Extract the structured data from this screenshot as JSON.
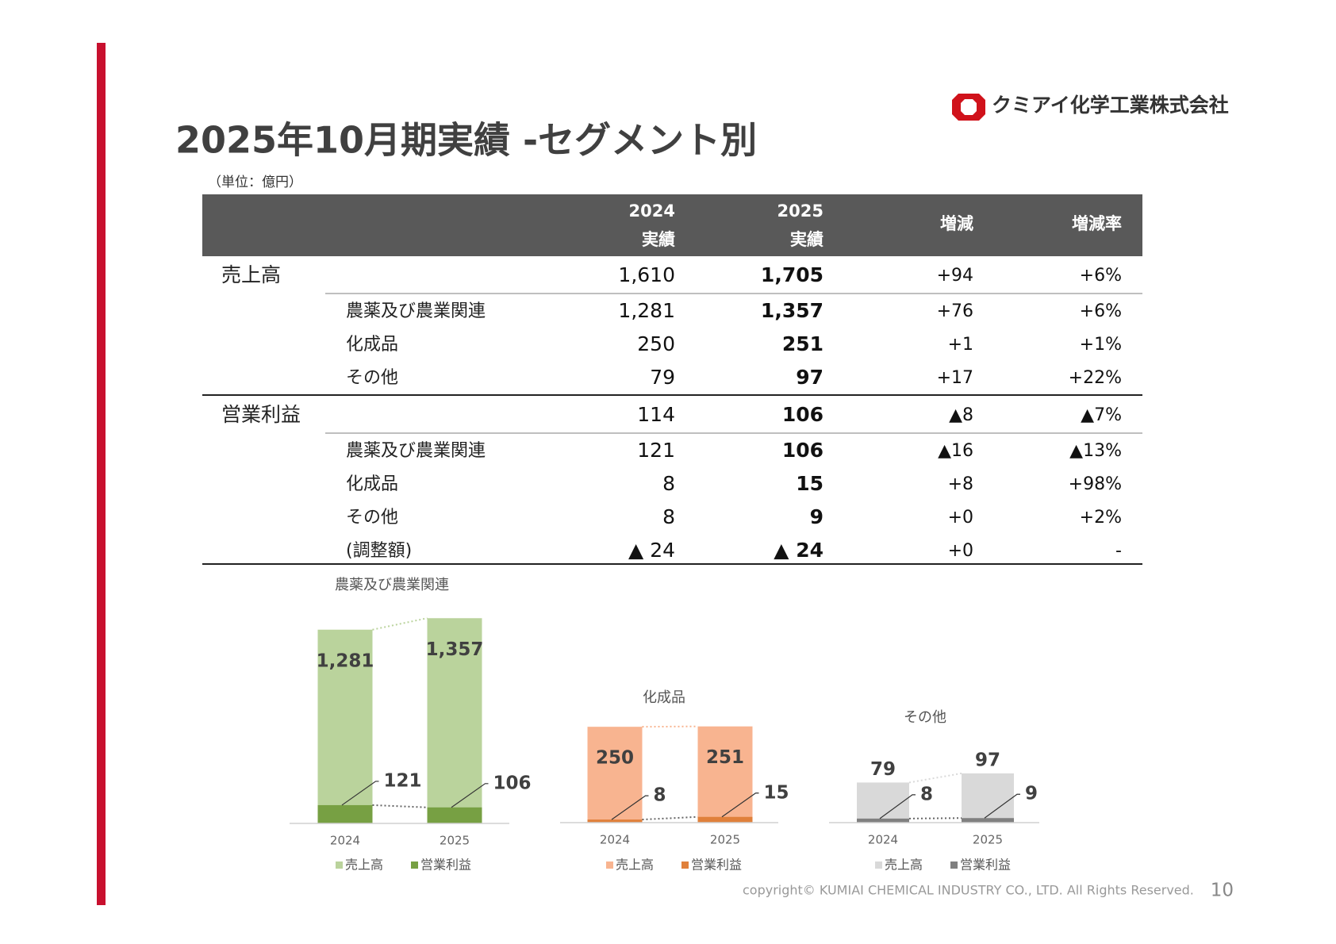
{
  "header": {
    "title": "2025年10月期実績 -セグメント別",
    "logo_text": "クミアイ化学工業株式会社",
    "unit": "（単位：億円）"
  },
  "table": {
    "columns": [
      [
        "2024",
        "実績"
      ],
      [
        "2025",
        "実績"
      ],
      [
        "増減"
      ],
      [
        "増減率"
      ]
    ],
    "sections": [
      {
        "label": "売上高",
        "values": [
          "1,610",
          "1,705",
          "+94",
          "+6%"
        ],
        "rows": [
          {
            "label": "農薬及び農業関連",
            "values": [
              "1,281",
              "1,357",
              "+76",
              "+6%"
            ]
          },
          {
            "label": "化成品",
            "values": [
              "250",
              "251",
              "+1",
              "+1%"
            ]
          },
          {
            "label": "その他",
            "values": [
              "79",
              "97",
              "+17",
              "+22%"
            ]
          }
        ]
      },
      {
        "label": "営業利益",
        "values": [
          "114",
          "106",
          "▲8",
          "▲7%"
        ],
        "rows": [
          {
            "label": "農薬及び農業関連",
            "values": [
              "121",
              "106",
              "▲16",
              "▲13%"
            ]
          },
          {
            "label": "化成品",
            "values": [
              "8",
              "15",
              "+8",
              "+98%"
            ]
          },
          {
            "label": "その他",
            "values": [
              "8",
              "9",
              "+0",
              "+2%"
            ]
          },
          {
            "label": "(調整額)",
            "values": [
              "▲ 24",
              "▲ 24",
              "+0",
              "-"
            ]
          }
        ]
      }
    ]
  },
  "chart_data": [
    {
      "type": "bar",
      "title": "農薬及び農業関連",
      "categories": [
        "2024",
        "2025"
      ],
      "ylim": [
        0,
        1500
      ],
      "series": [
        {
          "name": "売上高",
          "color": "#bad39c",
          "values": [
            1281,
            1357
          ],
          "value_labels": [
            "1,281",
            "1,357"
          ]
        },
        {
          "name": "営業利益",
          "color": "#77a043",
          "values": [
            121,
            106
          ]
        }
      ]
    },
    {
      "type": "bar",
      "title": "化成品",
      "categories": [
        "2024",
        "2025"
      ],
      "ylim": [
        0,
        300
      ],
      "series": [
        {
          "name": "売上高",
          "color": "#f8b490",
          "values": [
            250,
            251
          ]
        },
        {
          "name": "営業利益",
          "color": "#e0803b",
          "values": [
            8,
            15
          ]
        }
      ]
    },
    {
      "type": "bar",
      "title": "その他",
      "categories": [
        "2024",
        "2025"
      ],
      "ylim": [
        0,
        100
      ],
      "series": [
        {
          "name": "売上高",
          "color": "#d9d9d9",
          "values": [
            79,
            97
          ]
        },
        {
          "name": "営業利益",
          "color": "#808080",
          "values": [
            8,
            9
          ]
        }
      ]
    }
  ],
  "footer": {
    "copyright": "copyright© KUMIAI CHEMICAL INDUSTRY CO., LTD. All Rights Reserved.",
    "page": "10"
  }
}
